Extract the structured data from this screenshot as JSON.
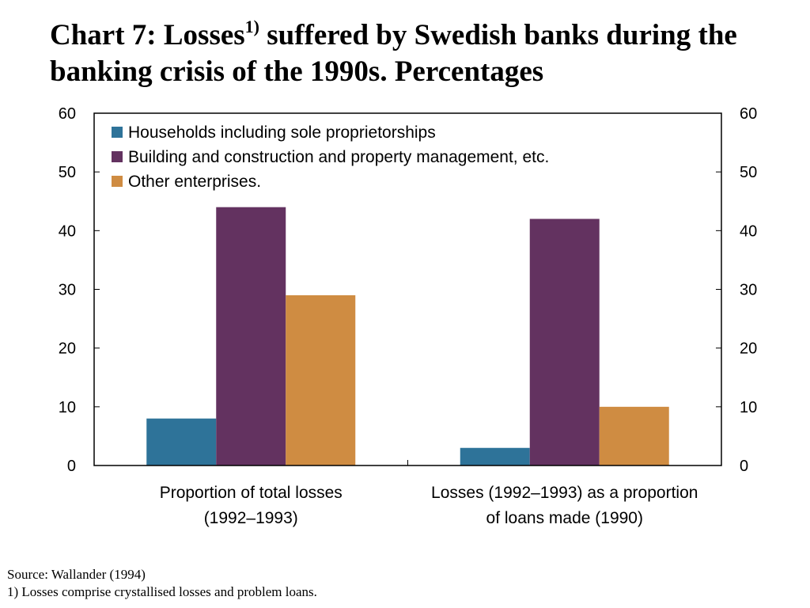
{
  "title": {
    "part1": "Chart 7: Losses",
    "superscript": "1)",
    "part2": " suffered by Swedish banks during the banking crisis of the 1990s. Percentages"
  },
  "chart_data": {
    "type": "bar",
    "categories": [
      [
        "Proportion of total losses",
        "(1992–1993)"
      ],
      [
        "Losses (1992–1993) as a proportion",
        "of loans made (1990)"
      ]
    ],
    "series": [
      {
        "name": "Households including sole proprietorships",
        "color": "#2e7399",
        "values": [
          8,
          3
        ]
      },
      {
        "name": "Building and construction and property management, etc.",
        "color": "#633260",
        "values": [
          44,
          42
        ]
      },
      {
        "name": "Other enterprises.",
        "color": "#cf8c42",
        "values": [
          29,
          10
        ]
      }
    ],
    "ylim": [
      0,
      60
    ],
    "yticks": [
      0,
      10,
      20,
      30,
      40,
      50,
      60
    ],
    "ytick_labels": [
      "0",
      "10",
      "20",
      "30",
      "40",
      "50",
      "60"
    ],
    "secondary_axis": true,
    "legend": "top-left",
    "grid": false
  },
  "footer": {
    "source": "Source: Wallander (1994)",
    "note": "1) Losses comprise crystallised losses and problem loans."
  }
}
